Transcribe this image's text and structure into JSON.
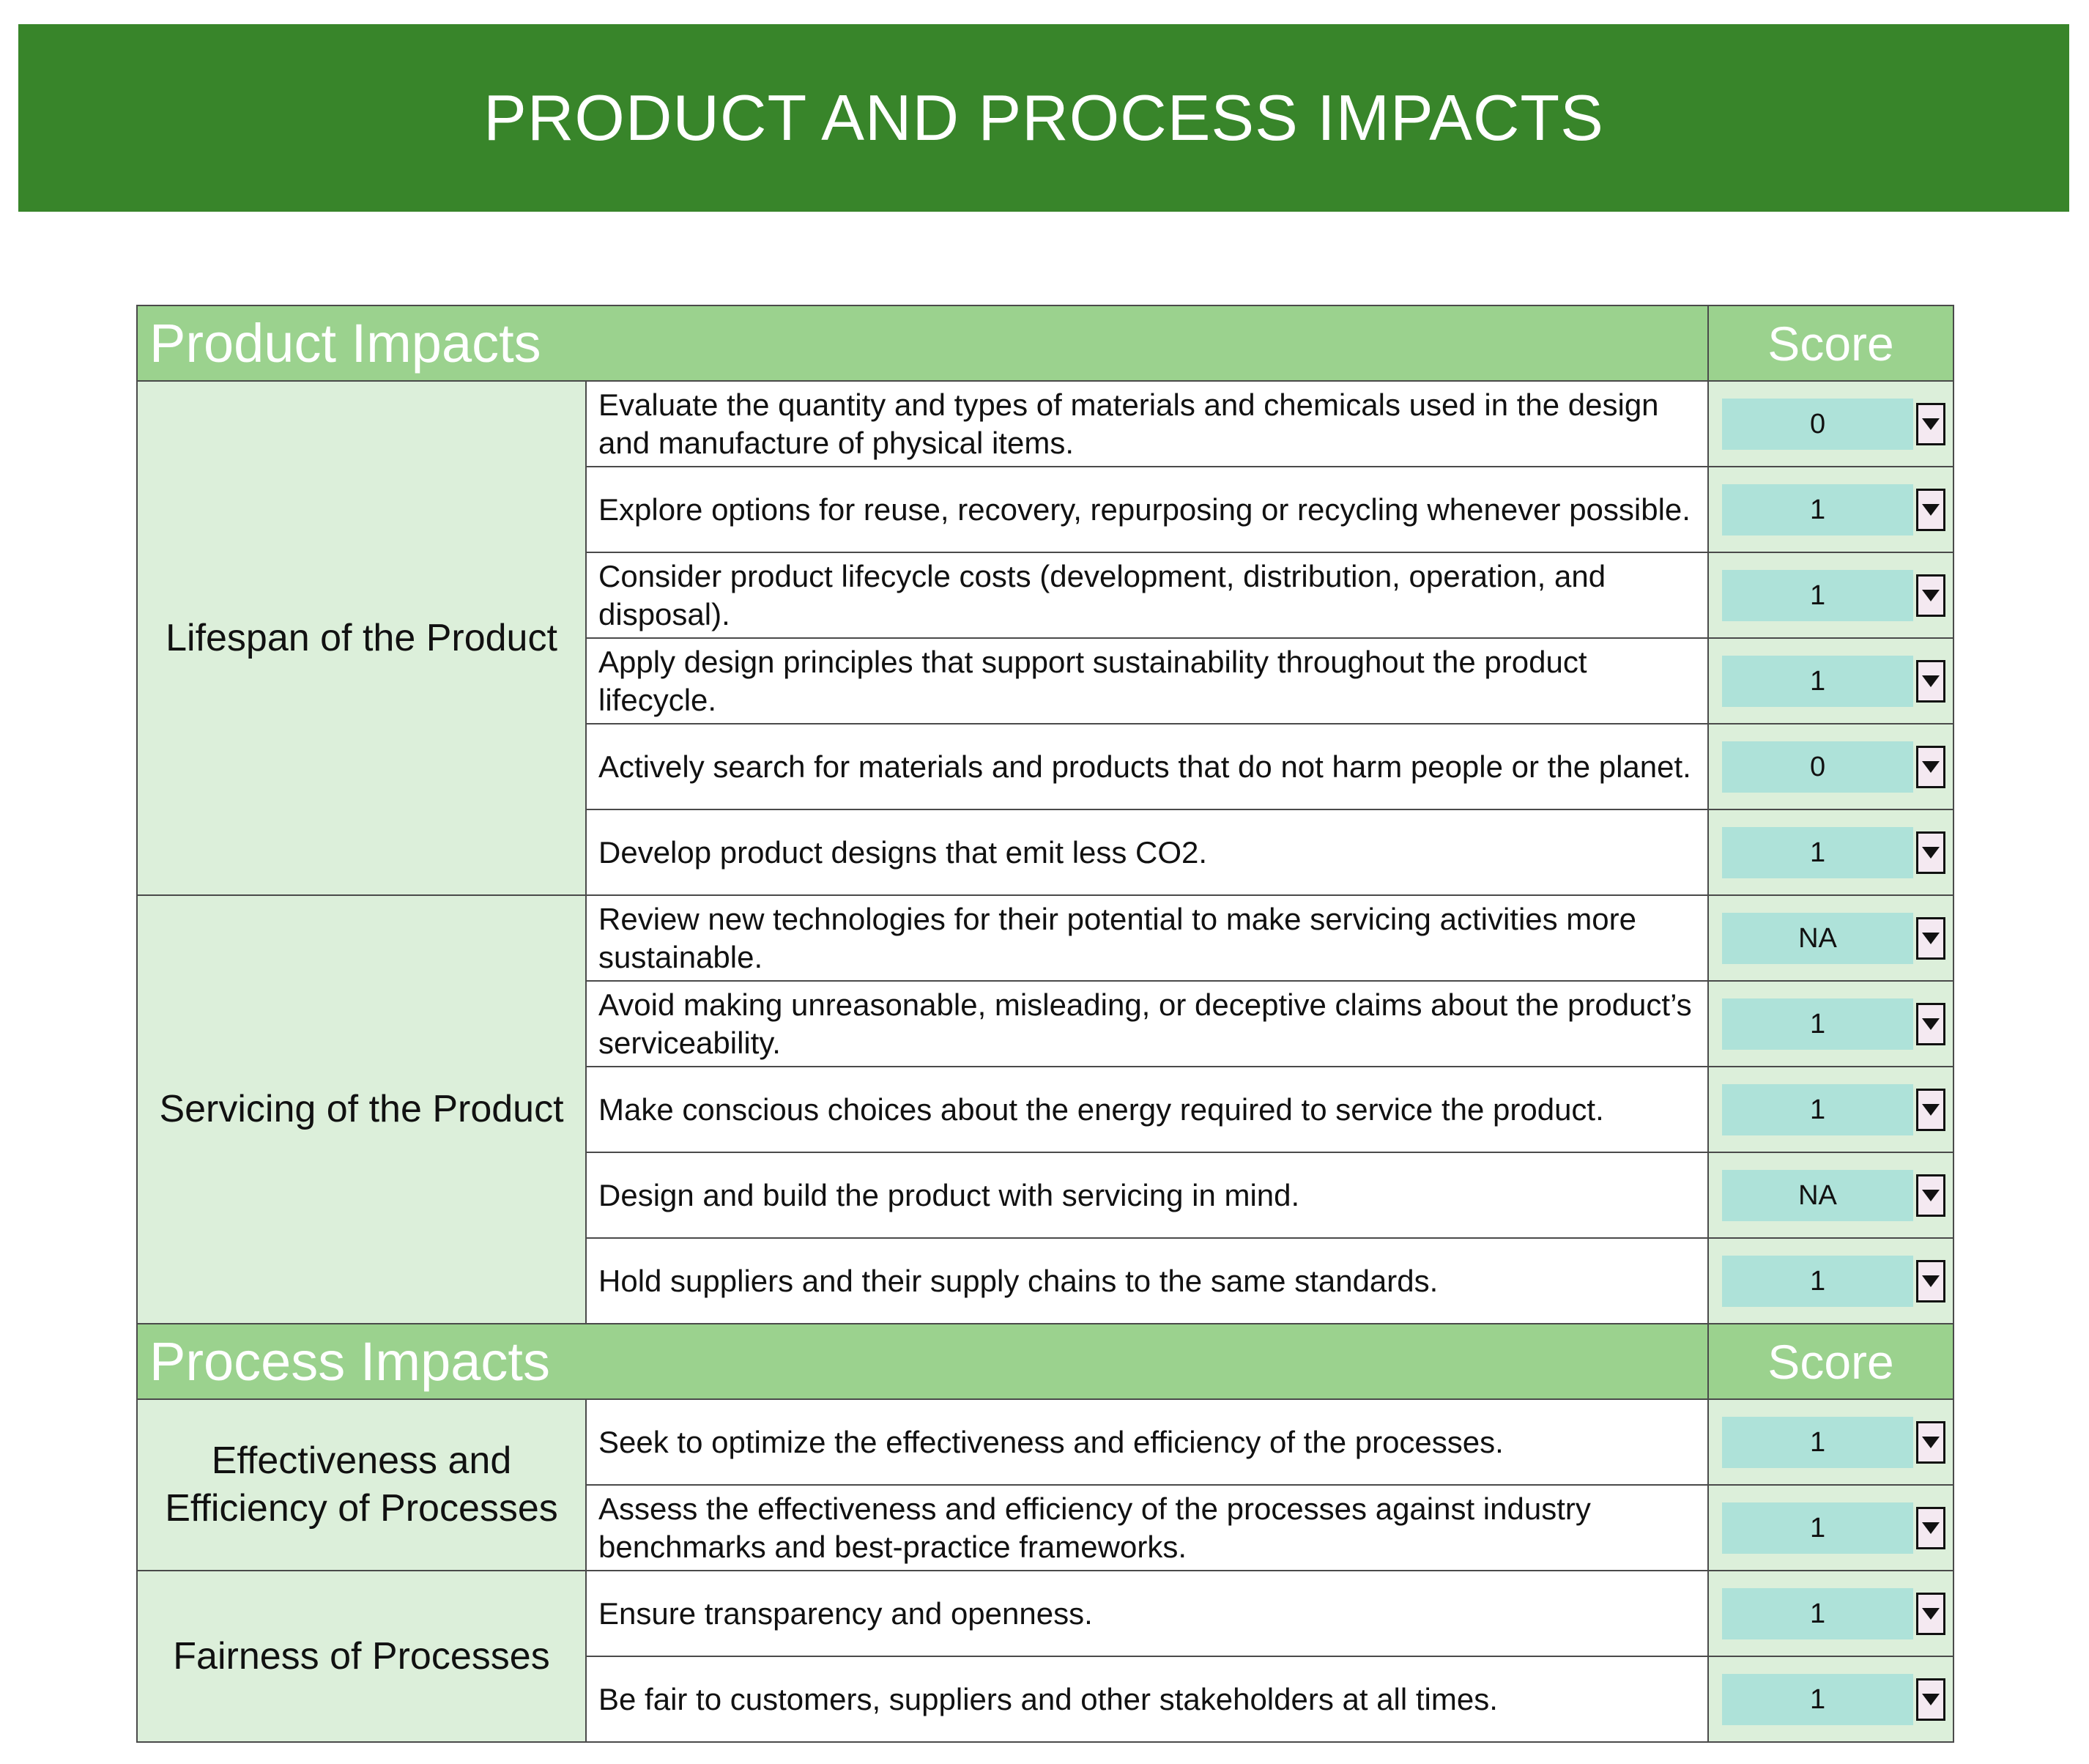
{
  "page_title": "PRODUCT AND PROCESS IMPACTS",
  "sections": [
    {
      "title": "Product Impacts",
      "score_header": "Score",
      "groups": [
        {
          "category": "Lifespan of the Product",
          "items": [
            {
              "text": "Evaluate the quantity and types of materials and chemicals used in the design and manufacture of physical items.",
              "score": "0"
            },
            {
              "text": "Explore options for reuse, recovery, repurposing or recycling whenever possible.",
              "score": "1"
            },
            {
              "text": "Consider product lifecycle costs (development, distribution, operation, and disposal).",
              "score": "1"
            },
            {
              "text": "Apply design principles that support sustainability throughout the product lifecycle.",
              "score": "1"
            },
            {
              "text": "Actively search for materials and products that do not harm people or the planet.",
              "score": "0"
            },
            {
              "text": "Develop product designs that emit less CO2.",
              "score": "1"
            }
          ]
        },
        {
          "category": "Servicing of the Product",
          "items": [
            {
              "text": "Review new technologies for their potential to make servicing activities more sustainable.",
              "score": "NA"
            },
            {
              "text": "Avoid making unreasonable, misleading, or deceptive claims about the product’s serviceability.",
              "score": "1"
            },
            {
              "text": "Make conscious choices about the energy required to service the product.",
              "score": "1"
            },
            {
              "text": "Design and build the product with servicing in mind.",
              "score": "NA"
            },
            {
              "text": "Hold suppliers and their supply chains to the same standards.",
              "score": "1"
            }
          ]
        }
      ]
    },
    {
      "title": "Process Impacts",
      "score_header": "Score",
      "groups": [
        {
          "category": "Effectiveness and Efficiency of Processes",
          "items": [
            {
              "text": "Seek to optimize the effectiveness and efficiency of the processes.",
              "score": "1"
            },
            {
              "text": "Assess the effectiveness and efficiency of the processes against industry benchmarks and best-practice frameworks.",
              "score": "1"
            }
          ]
        },
        {
          "category": "Fairness of Processes",
          "items": [
            {
              "text": "Ensure transparency and openness.",
              "score": "1"
            },
            {
              "text": "Be fair to customers, suppliers and other stakeholders at all times.",
              "score": "1"
            }
          ]
        }
      ]
    }
  ],
  "icons": {
    "dropdown": "dropdown-arrow-icon"
  },
  "colors": {
    "banner": "#38852a",
    "section_header": "#9bd28e",
    "category_bg": "#dcefda",
    "score_value_bg": "#aee2d9"
  }
}
